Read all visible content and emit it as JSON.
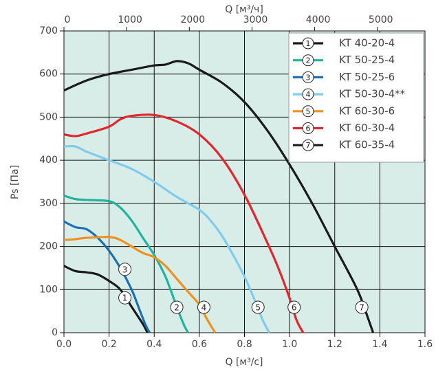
{
  "chart_data": {
    "type": "line",
    "x_label": "Q [м³/с]",
    "y_label": "Ps [Па]",
    "x2_label": "Q [м³/ч]",
    "xlim": [
      0,
      1.6
    ],
    "xticks": [
      {
        "value": 0,
        "label": "0.0"
      },
      {
        "value": 0.2,
        "label": "0.2"
      },
      {
        "value": 0.4,
        "label": "0.4"
      },
      {
        "value": 0.6,
        "label": "0.6"
      },
      {
        "value": 0.8,
        "label": "0.8"
      },
      {
        "value": 1.0,
        "label": "1.0"
      },
      {
        "value": 1.2,
        "label": "1.2"
      },
      {
        "value": 1.4,
        "label": "1.4"
      },
      {
        "value": 1.6,
        "label": "1.6"
      }
    ],
    "x2lim": [
      0,
      5760
    ],
    "x2ticks": [
      0,
      1000,
      2000,
      3000,
      4000,
      5000
    ],
    "ylim": [
      0,
      700
    ],
    "yticks": [
      0,
      100,
      200,
      300,
      400,
      500,
      600,
      700
    ],
    "grid": true,
    "legend": "upper right",
    "series": [
      {
        "label": "1",
        "name": "KT 40-20-4",
        "color": "#1a1a1a",
        "x": [
          0,
          0.05,
          0.1,
          0.15,
          0.2,
          0.25,
          0.3,
          0.35,
          0.37
        ],
        "values": [
          155,
          143,
          140,
          135,
          120,
          100,
          60,
          20,
          0
        ]
      },
      {
        "label": "2",
        "name": "KT 50-25-4",
        "color": "#1fb3a0",
        "x": [
          0,
          0.05,
          0.1,
          0.2,
          0.25,
          0.3,
          0.35,
          0.4,
          0.45,
          0.5,
          0.53,
          0.55
        ],
        "values": [
          318,
          310,
          308,
          305,
          290,
          260,
          220,
          180,
          130,
          60,
          20,
          0
        ]
      },
      {
        "label": "3",
        "name": "KT 50-25-6",
        "color": "#1a6fb5",
        "x": [
          0,
          0.05,
          0.1,
          0.15,
          0.2,
          0.25,
          0.3,
          0.33,
          0.36,
          0.38
        ],
        "values": [
          258,
          245,
          240,
          220,
          190,
          150,
          100,
          60,
          20,
          0
        ]
      },
      {
        "label": "4",
        "name": "KT 50-30-4**",
        "color": "#7fcbee",
        "x": [
          0,
          0.05,
          0.1,
          0.2,
          0.3,
          0.4,
          0.5,
          0.6,
          0.65,
          0.7,
          0.75,
          0.8,
          0.85,
          0.88,
          0.91
        ],
        "values": [
          432,
          432,
          420,
          400,
          380,
          350,
          315,
          285,
          260,
          225,
          180,
          130,
          70,
          30,
          0
        ]
      },
      {
        "label": "5",
        "name": "KT 60-30-6",
        "color": "#f0901e",
        "x": [
          0,
          0.05,
          0.1,
          0.2,
          0.25,
          0.3,
          0.35,
          0.4,
          0.45,
          0.5,
          0.55,
          0.6,
          0.63,
          0.67
        ],
        "values": [
          215,
          217,
          220,
          222,
          215,
          200,
          185,
          175,
          155,
          125,
          95,
          65,
          35,
          0
        ]
      },
      {
        "label": "6",
        "name": "KT 60-30-4",
        "color": "#e3262b",
        "x": [
          0,
          0.05,
          0.1,
          0.2,
          0.25,
          0.3,
          0.4,
          0.5,
          0.6,
          0.7,
          0.8,
          0.9,
          0.95,
          1.0,
          1.03,
          1.06
        ],
        "values": [
          460,
          456,
          462,
          478,
          495,
          503,
          505,
          490,
          460,
          405,
          320,
          210,
          150,
          80,
          30,
          0
        ]
      },
      {
        "label": "7",
        "name": "KT 60-35-4",
        "color": "#1a1a1a",
        "x": [
          0,
          0.1,
          0.2,
          0.3,
          0.4,
          0.45,
          0.5,
          0.55,
          0.6,
          0.7,
          0.8,
          0.9,
          1.0,
          1.1,
          1.2,
          1.3,
          1.35,
          1.37
        ],
        "values": [
          562,
          585,
          600,
          610,
          620,
          622,
          630,
          625,
          610,
          580,
          535,
          470,
          390,
          300,
          200,
          100,
          30,
          0
        ]
      }
    ]
  }
}
